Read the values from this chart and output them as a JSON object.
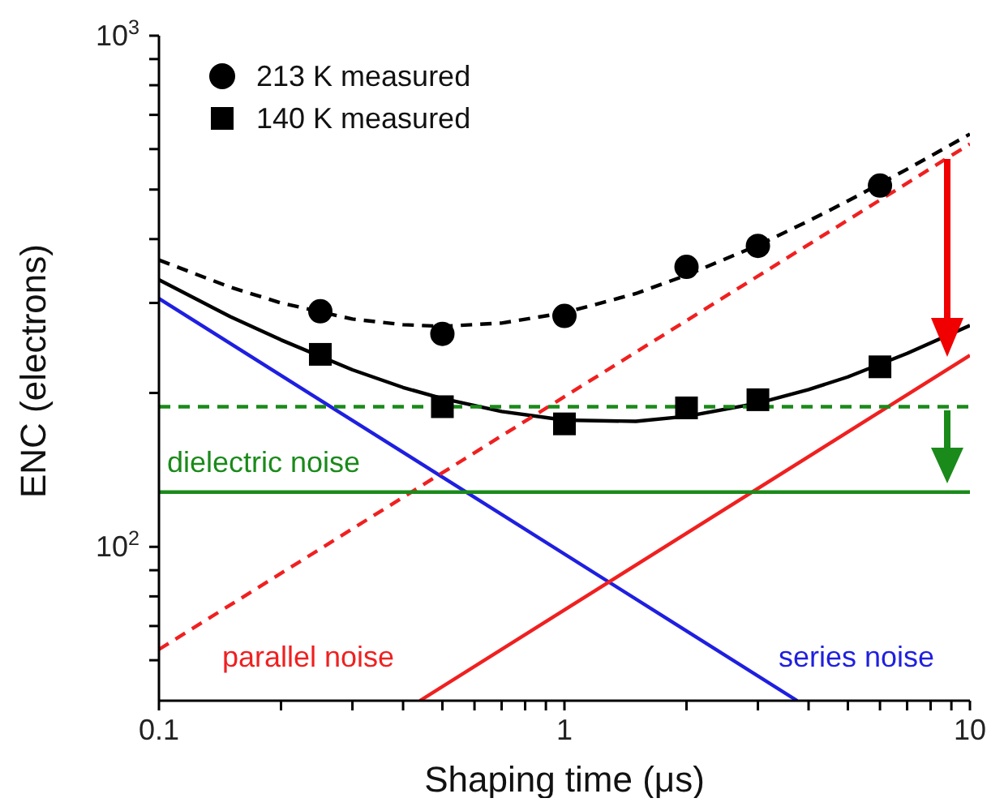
{
  "chart_data": {
    "type": "line",
    "xlabel": "Shaping time (μs)",
    "ylabel": "ENC (electrons)",
    "log": "xy",
    "annotations": [
      "parallel noise"
    ],
    "legend": "top left",
    "xlim": [
      0.1,
      10
    ],
    "ylim": [
      50,
      1000
    ],
    "xticks": [
      0.1,
      {
        "value": 0.2,
        "label": null
      },
      {
        "value": 0.3,
        "label": null
      },
      {
        "value": 0.4,
        "label": null
      },
      {
        "value": 0.5,
        "label": null
      },
      {
        "value": 0.6,
        "label": null
      },
      {
        "value": 0.7,
        "label": null
      },
      {
        "value": 0.8,
        "label": null
      },
      {
        "value": 0.9,
        "label": null
      },
      1,
      {
        "value": 2,
        "label": null
      },
      {
        "value": 3,
        "label": null
      },
      {
        "value": 4,
        "label": null
      },
      {
        "value": 5,
        "label": null
      },
      {
        "value": 6,
        "label": null
      },
      {
        "value": 7,
        "label": null
      },
      {
        "value": 8,
        "label": null
      },
      {
        "value": 9,
        "label": null
      },
      10
    ],
    "yticks": [
      {
        "value": 60,
        "label": null
      },
      {
        "value": 70,
        "label": null
      },
      {
        "value": 80,
        "label": null
      },
      {
        "value": 90,
        "label": null
      },
      {
        "value": 100,
        "label": "10$^{2}$"
      },
      {
        "value": 200,
        "label": null
      },
      {
        "value": 300,
        "label": null
      },
      {
        "value": 400,
        "label": null
      },
      {
        "value": 500,
        "label": null
      },
      {
        "value": 600,
        "label": null
      },
      {
        "value": 700,
        "label": null
      },
      {
        "value": 800,
        "label": null
      },
      {
        "value": 900,
        "label": null
      },
      {
        "value": 1000,
        "label": "10$^{3}$"
      }
    ],
    "series": [
      {
        "name": "213 K measured",
        "type": "scatter",
        "marker": "circle",
        "color": "#000000",
        "x": [
          0.25,
          0.5,
          1,
          2,
          3,
          6
        ],
        "values": [
          289,
          261,
          283,
          353,
          388,
          509
        ]
      },
      {
        "name": "140 K measured",
        "type": "scatter",
        "marker": "square",
        "color": "#000000",
        "x": [
          0.25,
          0.5,
          1,
          2,
          3,
          6
        ],
        "values": [
          238,
          188,
          174,
          187,
          194,
          225
        ]
      },
      {
        "line_style": "dashed",
        "color": "#000000",
        "x": [
          0.1,
          0.15,
          0.2,
          0.3,
          0.4,
          0.5,
          0.7,
          1,
          1.5,
          2,
          3,
          4,
          5,
          7,
          10
        ],
        "values": [
          364,
          322,
          300,
          279,
          272,
          270,
          274,
          287,
          313,
          340,
          389,
          434,
          475,
          548,
          642
        ]
      },
      {
        "line_style": "solid",
        "color": "#000000",
        "x": [
          0.1,
          0.15,
          0.2,
          0.3,
          0.4,
          0.5,
          0.7,
          1,
          1.5,
          2,
          3,
          4,
          5,
          7,
          10
        ],
        "values": [
          333,
          282,
          254,
          222,
          205,
          195,
          184,
          177,
          176,
          180,
          191,
          203,
          215,
          239,
          271
        ]
      },
      {
        "name": "series noise",
        "line_style": "solid",
        "color": "#1f1fe0",
        "x": [
          0.1,
          3.75
        ],
        "values": [
          306,
          50
        ]
      },
      {
        "line_style": "dashed",
        "color": "#f02020",
        "x": [
          0.1,
          10
        ],
        "values": [
          63,
          614
        ]
      },
      {
        "line_style": "solid",
        "color": "#f02020",
        "x": [
          0.44,
          10
        ],
        "values": [
          50,
          237
        ]
      },
      {
        "line_style": "dashed",
        "color": "#1a8a1a",
        "x": [
          0.1,
          10
        ],
        "values": [
          188,
          188
        ]
      },
      {
        "name": "dielectric noise",
        "line_style": "solid",
        "color": "#1a8a1a",
        "x": [
          0.1,
          10
        ],
        "values": [
          128,
          128
        ]
      }
    ]
  }
}
